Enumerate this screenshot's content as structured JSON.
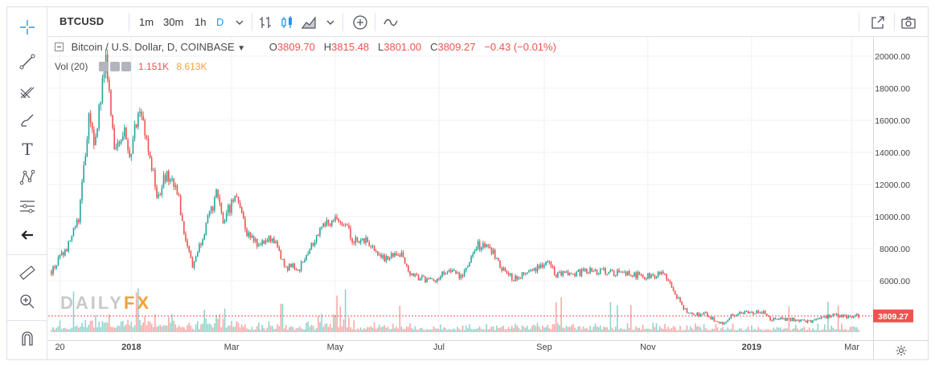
{
  "toolbar": {
    "symbol": "BTCUSD",
    "intervals": [
      "1m",
      "30m",
      "1h",
      "D"
    ],
    "active_interval": "D"
  },
  "legend": {
    "title": "Bitcoin / U.S. Dollar, D, COINBASE",
    "open_label": "O",
    "open": "3809.70",
    "high_label": "H",
    "high": "3815.48",
    "low_label": "L",
    "low": "3801.00",
    "close_label": "C",
    "close": "3809.27",
    "change": "−0.43 (−0.01%)",
    "vol_label": "Vol (20)",
    "vol_value": "1.151K",
    "vol_ma": "8.613K"
  },
  "watermark": {
    "part1": "DAILY",
    "part2": "FX"
  },
  "colors": {
    "up": "#26a69a",
    "down": "#ef5350",
    "up_vol": "#92d2cc",
    "down_vol": "#f7a9a7",
    "accent": "#2196f3"
  },
  "icons": [
    "crosshair-icon",
    "trend-line-icon",
    "pitchfork-icon",
    "brush-icon",
    "text-icon",
    "pattern-icon",
    "fib-icon",
    "back-arrow-icon",
    "ruler-icon",
    "zoom-icon",
    "magnet-icon",
    "bar-style-icon",
    "candle-style-icon",
    "area-style-icon",
    "add-indicator-icon",
    "compare-icon",
    "fullscreen-icon",
    "camera-icon",
    "settings-icon"
  ],
  "chart_data": {
    "type": "candlestick",
    "symbol": "BTCUSD",
    "last_price": 3809.27,
    "last_price_label": "3809.27",
    "y_ticks": [
      6000,
      8000,
      10000,
      12000,
      14000,
      16000,
      18000,
      20000
    ],
    "y_tick_labels": [
      "6000.00",
      "8000.00",
      "10000.00",
      "12000.00",
      "14000.00",
      "16000.00",
      "18000.00",
      "20000.00"
    ],
    "ylim": [
      3100,
      20300
    ],
    "x_range": [
      "2017-11-15",
      "2019-03-05"
    ],
    "x_ticks": [
      {
        "date": "2017-11-20",
        "label": "20",
        "bold": false
      },
      {
        "date": "2018-01-01",
        "label": "2018",
        "bold": true
      },
      {
        "date": "2018-03-01",
        "label": "Mar",
        "bold": false
      },
      {
        "date": "2018-05-01",
        "label": "May",
        "bold": false
      },
      {
        "date": "2018-07-01",
        "label": "Jul",
        "bold": false
      },
      {
        "date": "2018-09-01",
        "label": "Sep",
        "bold": false
      },
      {
        "date": "2018-11-01",
        "label": "Nov",
        "bold": false
      },
      {
        "date": "2019-01-01",
        "label": "2019",
        "bold": true
      },
      {
        "date": "2019-03-01",
        "label": "Mar",
        "bold": false
      }
    ],
    "price_path": [
      [
        "2017-11-15",
        6600
      ],
      [
        "2017-11-25",
        8200
      ],
      [
        "2017-12-01",
        9900
      ],
      [
        "2017-12-07",
        16000
      ],
      [
        "2017-12-10",
        14500
      ],
      [
        "2017-12-17",
        19600
      ],
      [
        "2017-12-22",
        14000
      ],
      [
        "2017-12-27",
        15500
      ],
      [
        "2017-12-31",
        13800
      ],
      [
        "2018-01-06",
        17100
      ],
      [
        "2018-01-10",
        14500
      ],
      [
        "2018-01-17",
        11000
      ],
      [
        "2018-01-20",
        12800
      ],
      [
        "2018-01-28",
        11500
      ],
      [
        "2018-02-01",
        9200
      ],
      [
        "2018-02-06",
        6900
      ],
      [
        "2018-02-10",
        8200
      ],
      [
        "2018-02-20",
        11300
      ],
      [
        "2018-02-24",
        9700
      ],
      [
        "2018-03-04",
        11500
      ],
      [
        "2018-03-10",
        9000
      ],
      [
        "2018-03-18",
        8200
      ],
      [
        "2018-03-25",
        8700
      ],
      [
        "2018-04-01",
        6900
      ],
      [
        "2018-04-10",
        6800
      ],
      [
        "2018-04-15",
        7900
      ],
      [
        "2018-04-24",
        9600
      ],
      [
        "2018-05-05",
        9800
      ],
      [
        "2018-05-12",
        8500
      ],
      [
        "2018-05-20",
        8500
      ],
      [
        "2018-05-28",
        7400
      ],
      [
        "2018-06-10",
        7600
      ],
      [
        "2018-06-14",
        6400
      ],
      [
        "2018-06-28",
        5900
      ],
      [
        "2018-07-05",
        6600
      ],
      [
        "2018-07-15",
        6300
      ],
      [
        "2018-07-24",
        8200
      ],
      [
        "2018-07-30",
        8200
      ],
      [
        "2018-08-10",
        6300
      ],
      [
        "2018-08-14",
        6200
      ],
      [
        "2018-08-25",
        6700
      ],
      [
        "2018-09-04",
        7300
      ],
      [
        "2018-09-08",
        6400
      ],
      [
        "2018-09-20",
        6500
      ],
      [
        "2018-10-01",
        6600
      ],
      [
        "2018-10-15",
        6500
      ],
      [
        "2018-10-31",
        6300
      ],
      [
        "2018-11-10",
        6400
      ],
      [
        "2018-11-15",
        5600
      ],
      [
        "2018-11-20",
        4600
      ],
      [
        "2018-11-25",
        3900
      ],
      [
        "2018-12-05",
        3900
      ],
      [
        "2018-12-15",
        3300
      ],
      [
        "2018-12-20",
        3800
      ],
      [
        "2018-12-28",
        4000
      ],
      [
        "2019-01-08",
        4000
      ],
      [
        "2019-01-12",
        3600
      ],
      [
        "2019-01-25",
        3600
      ],
      [
        "2019-02-06",
        3450
      ],
      [
        "2019-02-10",
        3600
      ],
      [
        "2019-02-18",
        3900
      ],
      [
        "2019-02-25",
        3800
      ],
      [
        "2019-03-05",
        3810
      ]
    ]
  }
}
